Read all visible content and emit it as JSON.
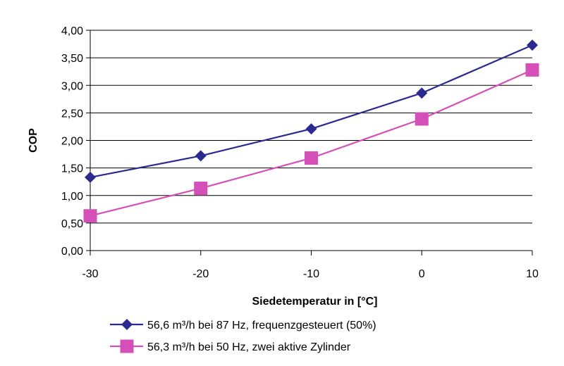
{
  "chart_data": {
    "type": "line",
    "title": "",
    "xlabel": "Siedetemperatur in [°C]",
    "ylabel": "COP",
    "x": [
      -30,
      -20,
      -10,
      0,
      10
    ],
    "x_ticks": [
      "-30",
      "-20",
      "-10",
      "0",
      "10"
    ],
    "xlim": [
      -30,
      10
    ],
    "ylim": [
      0,
      4
    ],
    "y_ticks": [
      0,
      0.5,
      1.0,
      1.5,
      2.0,
      2.5,
      3.0,
      3.5,
      4.0
    ],
    "y_tick_labels": [
      "0,00",
      "0,50",
      "1,00",
      "1,50",
      "2,00",
      "2,50",
      "3,00",
      "3,50",
      "4,00"
    ],
    "grid": "horizontal",
    "legend_position": "bottom",
    "series": [
      {
        "name": "56,6 m³/h bei 87 Hz, frequenzgesteuert (50%)",
        "values": [
          1.33,
          1.72,
          2.21,
          2.86,
          3.73
        ],
        "color": "#2b2b8f",
        "marker": "diamond"
      },
      {
        "name": "56,3 m³/h bei 50 Hz, zwei aktive Zylinder",
        "values": [
          0.63,
          1.13,
          1.68,
          2.39,
          3.28
        ],
        "color": "#d44fb8",
        "marker": "square"
      }
    ]
  }
}
